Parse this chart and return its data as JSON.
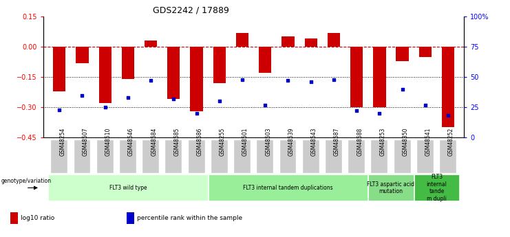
{
  "title": "GDS2242 / 17889",
  "samples": [
    "GSM48254",
    "GSM48507",
    "GSM48510",
    "GSM48546",
    "GSM48584",
    "GSM48585",
    "GSM48586",
    "GSM48255",
    "GSM48501",
    "GSM48503",
    "GSM48539",
    "GSM48543",
    "GSM48587",
    "GSM48588",
    "GSM48253",
    "GSM48350",
    "GSM48541",
    "GSM48252"
  ],
  "log10_ratio": [
    -0.22,
    -0.08,
    -0.28,
    -0.16,
    0.03,
    -0.26,
    -0.32,
    -0.18,
    0.07,
    -0.13,
    0.05,
    0.04,
    0.07,
    -0.3,
    -0.3,
    -0.07,
    -0.05,
    -0.4
  ],
  "percentile_rank": [
    23,
    35,
    25,
    33,
    47,
    32,
    20,
    30,
    48,
    27,
    47,
    46,
    48,
    22,
    20,
    40,
    27,
    18
  ],
  "ylim_left": [
    -0.45,
    0.15
  ],
  "ylim_right": [
    0,
    100
  ],
  "yticks_left": [
    -0.45,
    -0.3,
    -0.15,
    0.0,
    0.15
  ],
  "yticks_right": [
    0,
    25,
    50,
    75,
    100
  ],
  "ytick_labels_right": [
    "0",
    "25",
    "50",
    "75",
    "100%"
  ],
  "bar_color": "#cc0000",
  "scatter_color": "#0000cc",
  "hline_color": "#cc0000",
  "dotted_line_color": "#000000",
  "groups": [
    {
      "label": "FLT3 wild type",
      "start": 0,
      "end": 7,
      "color": "#ccffcc"
    },
    {
      "label": "FLT3 internal tandem duplications",
      "start": 7,
      "end": 14,
      "color": "#99ee99"
    },
    {
      "label": "FLT3 aspartic acid\nmutation",
      "start": 14,
      "end": 16,
      "color": "#88dd88"
    },
    {
      "label": "FLT3\ninternal\ntande\nm dupli",
      "start": 16,
      "end": 18,
      "color": "#44bb44"
    }
  ],
  "legend_items": [
    {
      "label": "log10 ratio",
      "color": "#cc0000"
    },
    {
      "label": "percentile rank within the sample",
      "color": "#0000cc"
    }
  ],
  "genotype_label": "genotype/variation",
  "bar_width": 0.55
}
